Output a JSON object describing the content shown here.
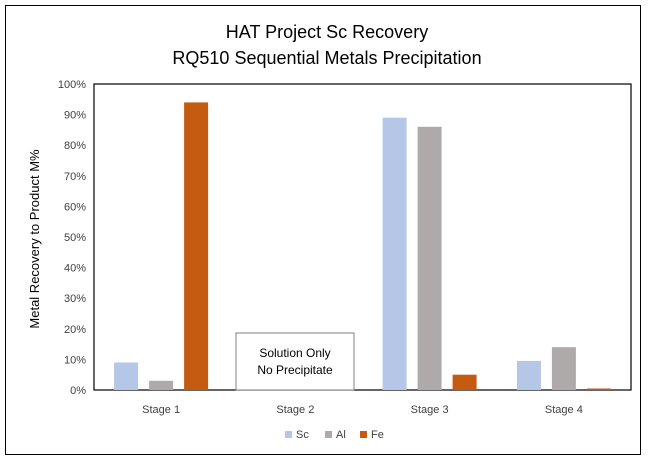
{
  "chart_data": {
    "type": "bar",
    "title_line1": "HAT Project Sc Recovery",
    "title_line2": "RQ510 Sequential Metals Precipitation",
    "xlabel": "",
    "ylabel": "Metal Recovery to Product M%",
    "ylim": [
      0,
      100
    ],
    "yticks": [
      "0%",
      "10%",
      "20%",
      "30%",
      "40%",
      "50%",
      "60%",
      "70%",
      "80%",
      "90%",
      "100%"
    ],
    "categories": [
      "Stage 1",
      "Stage 2",
      "Stage 3",
      "Stage 4"
    ],
    "series": [
      {
        "name": "Sc",
        "color": "#b4c7e7",
        "values": [
          9,
          0,
          89,
          9.5
        ]
      },
      {
        "name": "Al",
        "color": "#aeaaaa",
        "values": [
          3,
          0,
          86,
          14
        ]
      },
      {
        "name": "Fe",
        "color": "#c55a11",
        "values": [
          94,
          0,
          5,
          0.5
        ]
      }
    ],
    "annotation": {
      "line1": "Solution Only",
      "line2": "No Precipitate"
    },
    "legend_position": "bottom",
    "grid": false
  }
}
